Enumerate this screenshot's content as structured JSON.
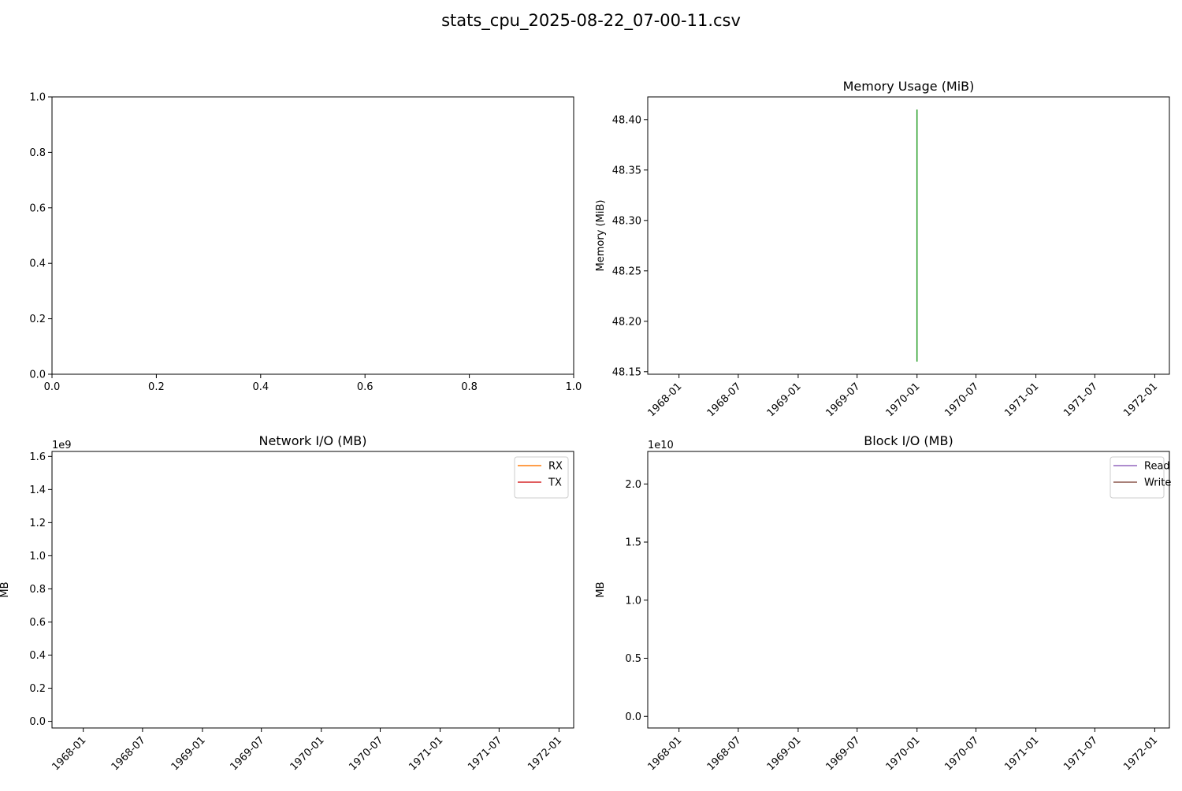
{
  "figure": {
    "title": "stats_cpu_2025-08-22_07-00-11.csv"
  },
  "chart_data": [
    {
      "id": "cpu",
      "type": "line",
      "title": "",
      "xlabel": "",
      "ylabel": "",
      "xlim": [
        0,
        1
      ],
      "ylim": [
        0,
        1
      ],
      "xticks": [
        "0.0",
        "0.2",
        "0.4",
        "0.6",
        "0.8",
        "1.0"
      ],
      "yticks": [
        "0.0",
        "0.2",
        "0.4",
        "0.6",
        "0.8",
        "1.0"
      ],
      "series": []
    },
    {
      "id": "memory",
      "type": "line",
      "title": "Memory Usage (MiB)",
      "xlabel": "",
      "ylabel": "Memory (MiB)",
      "x_type": "date",
      "xlim": [
        "1967-09-27",
        "1972-02-15"
      ],
      "ylim": [
        48.1475,
        48.4225
      ],
      "xticks": [
        "1968-01",
        "1968-07",
        "1969-01",
        "1969-07",
        "1970-01",
        "1970-07",
        "1971-01",
        "1971-07",
        "1972-01"
      ],
      "yticks": [
        "48.15",
        "48.20",
        "48.25",
        "48.30",
        "48.35",
        "48.40"
      ],
      "series": [
        {
          "color": "#2ca02c",
          "x": [
            "1970-01-01",
            "1970-01-01"
          ],
          "y": [
            48.16,
            48.41
          ]
        }
      ]
    },
    {
      "id": "network",
      "type": "line",
      "title": "Network I/O (MB)",
      "xlabel": "",
      "ylabel": "MB",
      "x_type": "date",
      "y_offset_label": "1e9",
      "xlim": [
        "1967-09-27",
        "1972-02-15"
      ],
      "ylim": [
        -0.04,
        1.63
      ],
      "xticks": [
        "1968-01",
        "1968-07",
        "1969-01",
        "1969-07",
        "1970-01",
        "1970-07",
        "1971-01",
        "1971-07",
        "1972-01"
      ],
      "yticks": [
        "0.0",
        "0.2",
        "0.4",
        "0.6",
        "0.8",
        "1.0",
        "1.2",
        "1.4",
        "1.6"
      ],
      "legend": {
        "position": "upper-right",
        "entries": [
          {
            "name": "RX",
            "color": "#ff7f0e"
          },
          {
            "name": "TX",
            "color": "#d62728"
          }
        ]
      },
      "series": []
    },
    {
      "id": "block",
      "type": "line",
      "title": "Block I/O (MB)",
      "xlabel": "",
      "ylabel": "MB",
      "x_type": "date",
      "y_offset_label": "1e10",
      "xlim": [
        "1967-09-27",
        "1972-02-15"
      ],
      "ylim": [
        -0.1,
        2.28
      ],
      "xticks": [
        "1968-01",
        "1968-07",
        "1969-01",
        "1969-07",
        "1970-01",
        "1970-07",
        "1971-01",
        "1971-07",
        "1972-01"
      ],
      "yticks": [
        "0.0",
        "0.5",
        "1.0",
        "1.5",
        "2.0"
      ],
      "legend": {
        "position": "upper-right",
        "entries": [
          {
            "name": "Read",
            "color": "#9467bd"
          },
          {
            "name": "Write",
            "color": "#8c564b"
          }
        ]
      },
      "series": []
    }
  ]
}
